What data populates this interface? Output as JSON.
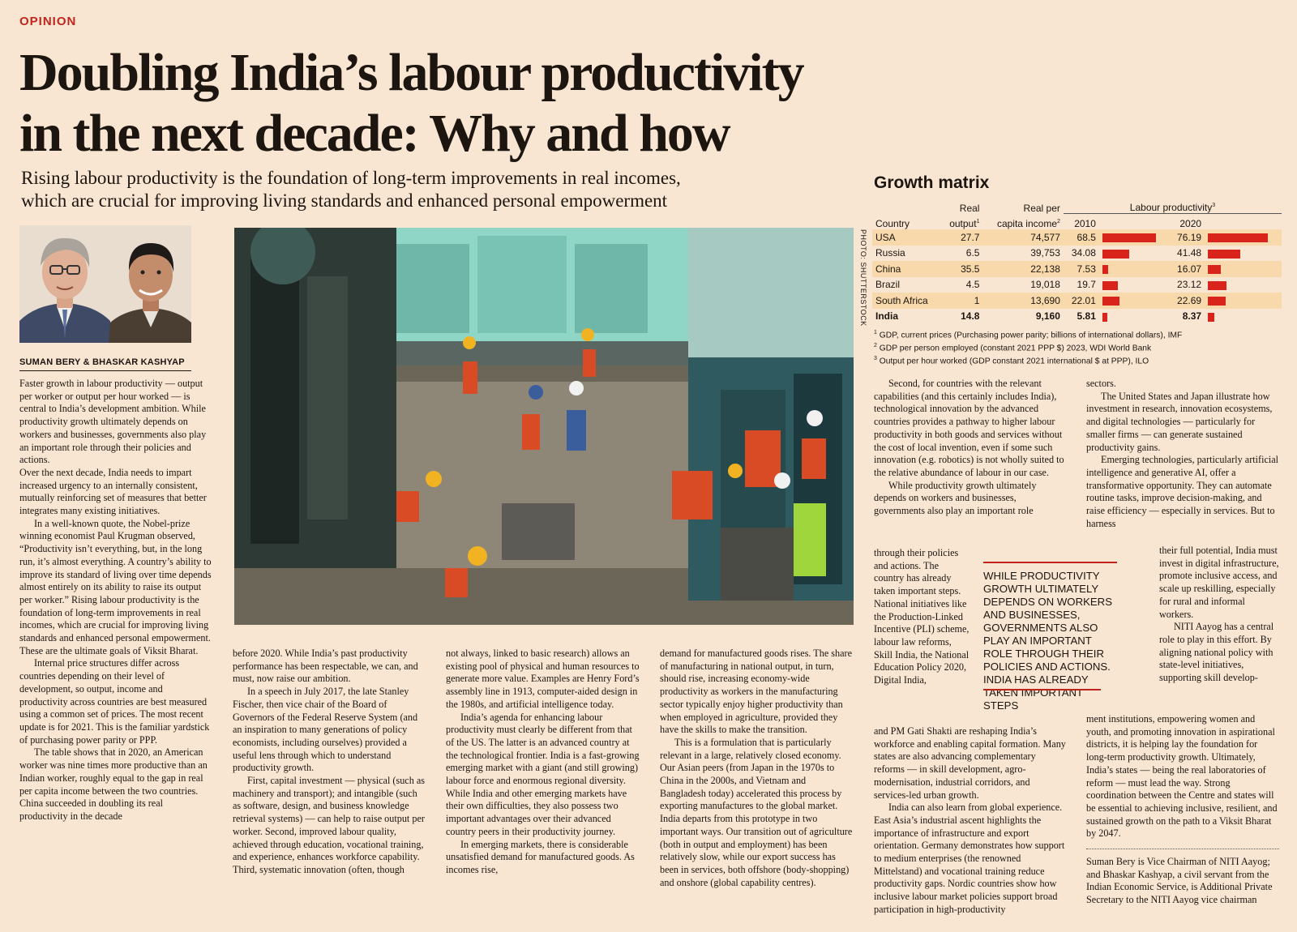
{
  "section": "OPINION",
  "headline": [
    "Doubling India’s labour productivity",
    "in the next decade: Why and how"
  ],
  "standfirst": [
    "Rising labour productivity is the foundation of long-term improvements in real incomes,",
    "which are crucial for improving living standards and enhanced personal empowerment"
  ],
  "byline": "SUMAN BERY & BHASKAR KASHYAP",
  "photo_credit": "PHOTO: SHUTTERSTOCK",
  "growth_matrix": {
    "title": "Growth matrix",
    "headers": {
      "country": "Country",
      "real": "Real",
      "output": "output",
      "real_per": "Real per",
      "capita_income": "capita income",
      "labour_productivity": "Labour productivity",
      "y2010": "2010",
      "y2020": "2020",
      "sup1": "1",
      "sup2": "2",
      "sup3": "3"
    },
    "rows": [
      {
        "country": "USA",
        "output": "27.7",
        "income": "74,577",
        "lp2010": "68.5",
        "lp2020": "76.19"
      },
      {
        "country": "Russia",
        "output": "6.5",
        "income": "39,753",
        "lp2010": "34.08",
        "lp2020": "41.48"
      },
      {
        "country": "China",
        "output": "35.5",
        "income": "22,138",
        "lp2010": "7.53",
        "lp2020": "16.07"
      },
      {
        "country": "Brazil",
        "output": "4.5",
        "income": "19,018",
        "lp2010": "19.7",
        "lp2020": "23.12"
      },
      {
        "country": "South Africa",
        "output": "1",
        "income": "13,690",
        "lp2010": "22.01",
        "lp2020": "22.69"
      },
      {
        "country": "India",
        "output": "14.8",
        "income": "9,160",
        "lp2010": "5.81",
        "lp2020": "8.37"
      }
    ],
    "notes": [
      "GDP, current prices (Purchasing power parity; billions of international dollars), IMF",
      "GDP per person employed (constant 2021 PPP $) 2023, WDI World Bank",
      "Output per hour worked (GDP constant 2021 international $ at PPP), ILO"
    ]
  },
  "body": {
    "col1": [
      "Faster growth in labour productivity — output per worker or output per hour worked — is central to India’s development ambition. While productivity growth ultimately depends on workers and businesses, governments also play an important role through their policies and actions.",
      "Over the next decade, India needs to impart increased urgency to an internally consistent, mutually reinforcing set of measures that better integrates many existing initiatives.",
      "In a well-known quote, the Nobel-prize winning economist Paul Krugman observed, “Productivity isn’t everything, but, in the long run, it’s almost everything. A country’s ability to improve its standard of living over time depends almost entirely on its ability to raise its output per worker.” Rising labour productivity is the foundation of long-term improvements in real incomes, which are crucial for improving living standards and enhanced personal empowerment. These are the ultimate goals of Viksit Bharat.",
      "Internal price structures differ across countries depending on their level of development, so output, income and productivity across countries are best measured using a common set of prices. The most recent update is for 2021. This is the familiar yardstick of purchasing power parity or PPP.",
      "The table shows that in 2020, an American worker was nine times more productive than an Indian worker, roughly equal to the gap in real per capita income between the two countries. China succeeded in doubling its real productivity in the decade"
    ],
    "col2": [
      "before 2020. While India’s past productivity performance has been respectable, we can, and must, now raise our ambition.",
      "In a speech in July 2017, the late Stanley Fischer, then vice chair of the Board of Governors of the Federal Reserve System (and an inspiration to many generations of policy economists, including ourselves) provided a useful lens through which to understand productivity growth.",
      "First, capital investment — physical (such as machinery and transport); and intangible (such as software, design, and business knowledge retrieval systems) — can help to raise output per worker. Second, improved labour quality, achieved through education, vocational training, and experience, enhances workforce capability. Third, systematic innovation (often, though"
    ],
    "col3": [
      "not always, linked to basic research) allows an existing pool of physical and human resources to generate more value. Examples are Henry Ford’s assembly line in 1913, computer-aided design in the 1980s, and artificial intelligence today.",
      "India’s agenda for enhancing labour productivity must clearly be different from that of the US. The latter is an advanced country at the technological frontier. India is a fast-growing emerging market with a giant (and still growing) labour force and enormous regional diversity. While India and other emerging markets have their own difficulties, they also possess two important advantages over their advanced country peers in their productivity journey.",
      "In emerging markets, there is considerable unsatisfied demand for manufactured goods. As incomes rise,"
    ],
    "col4": [
      "demand for manufactured goods rises. The share of manufacturing in national output, in turn, should rise, increasing economy-wide productivity as workers in the manufacturing sector typically enjoy higher productivity than when employed in agriculture, provided they have the skills to make the transition.",
      "This is a formulation that is particularly relevant in a large, relatively closed economy. Our Asian peers (from Japan in the 1970s to China in the 2000s, and Vietnam and Bangladesh today) accelerated this process by exporting manufactures to the global market. India departs from this prototype in two important ways. Our transition out of agriculture (both in output and employment) has been relatively slow, while our export success has been in services, both offshore (body-shopping) and onshore (global capability centres)."
    ],
    "col5a": [
      "Second, for countries with the relevant capabilities (and this certainly includes India), technological innovation by the advanced countries provides a pathway to higher labour productivity in both goods and services without the cost of local invention, even if some such innovation (e.g. robotics) is not wholly suited to the relative abundance of labour in our case.",
      "While productivity growth ultimately depends on workers and businesses, governments also play an important role"
    ],
    "col5b": "through their policies and actions. The country has already taken important steps. National initiatives like the Production-Linked Incentive (PLI) scheme, labour law reforms, Skill India, the National Education Policy 2020, Digital India,",
    "col5c": [
      "and PM Gati Shakti are reshaping India’s workforce and enabling capital formation. Many states are also advancing complementary reforms — in skill development, agro-modernisation, industrial corridors, and services-led urban growth.",
      "India can also learn from global experience. East Asia’s industrial ascent highlights the importance of infrastructure and export orientation. Germany demonstrates how support to medium enterprises (the renowned Mittelstand) and vocational training reduce productivity gaps. Nordic countries show how inclusive labour market policies support broad participation in high-productivity"
    ],
    "col6a": [
      "sectors.",
      "The United States and Japan illustrate how investment in research, innovation ecosystems, and digital technologies — particularly for smaller firms — can generate sustained productivity gains.",
      "Emerging technologies, particularly artificial intelligence and generative AI, offer a transformative opportunity. They can automate routine tasks, improve decision-making, and raise efficiency — especially in services. But to harness"
    ],
    "col6b": [
      "their full potential, India must invest in digital infrastructure, promote inclusive access, and scale up reskilling, especially for rural and informal workers.",
      "NITI Aayog has a central role to play in this effort. By aligning national policy with state-level initiatives, supporting skill develop-"
    ],
    "col6c": "ment institutions, empowering women and youth, and promoting innovation in aspirational districts, it is helping lay the foundation for long-term productivity growth. Ultimately, India’s states — being the real laboratories of reform — must lead the way. Strong coordination between the Centre and states will be essential to achieving inclusive, resilient, and sustained growth on the path to a Viksit Bharat by 2047.",
    "bio": "Suman Bery is Vice Chairman of NITI Aayog; and Bhaskar Kashyap, a civil servant from the Indian Economic Service, is Additional Private Secretary to the NITI Aayog vice chairman"
  },
  "pull_quote": "WHILE PRODUCTIVITY GROWTH ULTIMATELY DEPENDS ON WORKERS AND BUSINESSES, GOVERNMENTS ALSO PLAY AN IMPORTANT ROLE THROUGH THEIR POLICIES AND ACTIONS. INDIA HAS ALREADY TAKEN IMPORTANT STEPS",
  "colors": {
    "accent": "#c0251c",
    "bar": "#d9241b",
    "band": "#f7d9ab",
    "paper": "#f8e6d2"
  }
}
